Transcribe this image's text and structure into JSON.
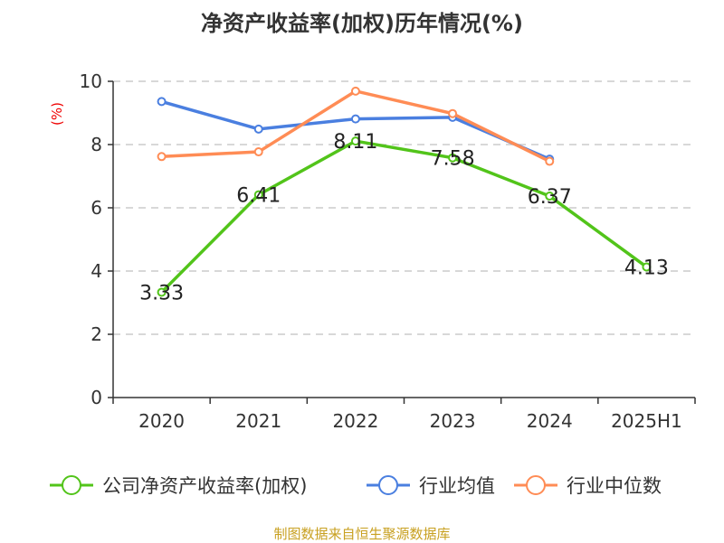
{
  "chart_data": {
    "type": "line",
    "title": "净资产收益率(加权)历年情况(%)",
    "ylabel": "(%)",
    "xlabel": "",
    "categories": [
      "2020",
      "2021",
      "2022",
      "2023",
      "2024",
      "2025H1"
    ],
    "ylim": [
      0,
      10
    ],
    "yticks": [
      0,
      2,
      4,
      6,
      8,
      10
    ],
    "grid": true,
    "legend_position": "bottom",
    "series": [
      {
        "name": "公司净资产收益率(加权)",
        "color": "#52c41a",
        "values": [
          3.33,
          6.41,
          8.11,
          7.58,
          6.37,
          4.13
        ],
        "labels": [
          "3.33",
          "6.41",
          "8.11",
          "7.58",
          "6.37",
          "4.13"
        ]
      },
      {
        "name": "行业均值",
        "color": "#4a7fe0",
        "values": [
          9.36,
          8.49,
          8.81,
          8.86,
          7.54,
          null
        ]
      },
      {
        "name": "行业中位数",
        "color": "#ff8c55",
        "values": [
          7.62,
          7.77,
          9.69,
          8.98,
          7.47,
          null
        ]
      }
    ]
  },
  "footer": "制图数据来自恒生聚源数据库"
}
